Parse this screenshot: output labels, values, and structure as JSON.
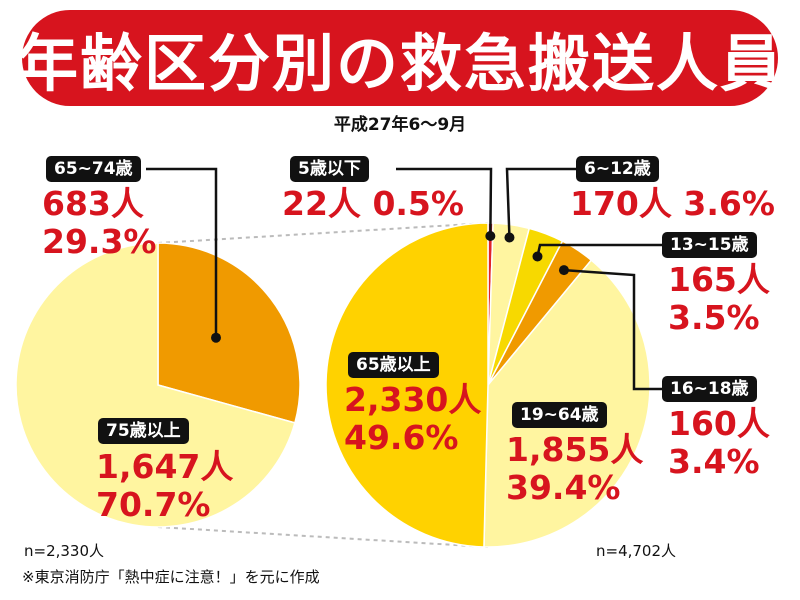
{
  "title": "年齢区分別の救急搬送人員",
  "subtitle": "平成27年6〜9月",
  "colors": {
    "banner": "#d7141e",
    "value_text": "#d7141e",
    "tag_bg": "#111111",
    "light_yellow": "#fff5a0",
    "mid_yellow": "#f7d900",
    "deep_yellow": "#ffd200",
    "orange": "#f09a00",
    "red": "#e0242a"
  },
  "chart_data": [
    {
      "type": "pie",
      "title": "",
      "n_label": "n=2,330人",
      "slices": [
        {
          "label": "65~74歳",
          "count_label": "683人",
          "percent_label": "29.3%",
          "count": 683,
          "percent": 29.3,
          "color": "#f09a00"
        },
        {
          "label": "75歳以上",
          "count_label": "1,647人",
          "percent_label": "70.7%",
          "count": 1647,
          "percent": 70.7,
          "color": "#fff5a0"
        }
      ]
    },
    {
      "type": "pie",
      "title": "",
      "n_label": "n=4,702人",
      "slices": [
        {
          "label": "5歳以下",
          "count_label": "22人",
          "percent_label": "0.5%",
          "count": 22,
          "percent": 0.5,
          "color": "#e0242a"
        },
        {
          "label": "6~12歳",
          "count_label": "170人",
          "percent_label": "3.6%",
          "count": 170,
          "percent": 3.6,
          "color": "#fff5a0"
        },
        {
          "label": "13~15歳",
          "count_label": "165人",
          "percent_label": "3.5%",
          "count": 165,
          "percent": 3.5,
          "color": "#f7d900"
        },
        {
          "label": "16~18歳",
          "count_label": "160人",
          "percent_label": "3.4%",
          "count": 160,
          "percent": 3.4,
          "color": "#f09a00"
        },
        {
          "label": "19~64歳",
          "count_label": "1,855人",
          "percent_label": "39.4%",
          "count": 1855,
          "percent": 39.4,
          "color": "#fff5a0"
        },
        {
          "label": "65歳以上",
          "count_label": "2,330人",
          "percent_label": "49.6%",
          "count": 2330,
          "percent": 49.6,
          "color": "#ffd200"
        }
      ]
    }
  ],
  "footnote": "※東京消防庁「熱中症に注意！」を元に作成"
}
